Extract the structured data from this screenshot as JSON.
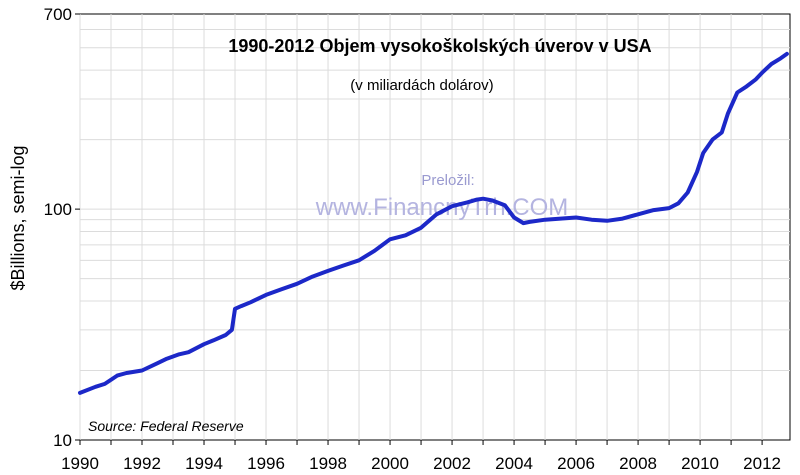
{
  "chart_data": {
    "type": "line",
    "title": "1990-2012 Objem vysokoškolských úverov v USA",
    "subtitle": "(v miliardách dolárov)",
    "ylabel": "$Billions, semi-log",
    "xlabel": "",
    "yscale": "log",
    "ylim": [
      10,
      700
    ],
    "xlim": [
      1990,
      2012.9
    ],
    "grid": true,
    "y_ticks": [
      10,
      100,
      700
    ],
    "y_tick_labels": [
      "10",
      "100",
      "700"
    ],
    "x_ticks": [
      1990,
      1992,
      1994,
      1996,
      1998,
      2000,
      2002,
      2004,
      2006,
      2008,
      2010,
      2012
    ],
    "x_tick_labels": [
      "1990",
      "1992",
      "1994",
      "1996",
      "1998",
      "2000",
      "2002",
      "2004",
      "2006",
      "2008",
      "2010",
      "2012"
    ],
    "annotations": {
      "source": "Source: Federal Reserve",
      "watermark_top": "Preložil:",
      "watermark_bottom": "www.FinancnyTrh.COM"
    },
    "line_color": "#1c28c8",
    "series": [
      {
        "x": [
          1990.0,
          1990.5,
          1990.8,
          1991.2,
          1991.5,
          1992.0,
          1992.5,
          1992.8,
          1993.2,
          1993.5,
          1994.0,
          1994.3,
          1994.7,
          1994.9,
          1995.0,
          1995.2,
          1995.5,
          1996.0,
          1996.5,
          1997.0,
          1997.5,
          1998.0,
          1998.5,
          1999.0,
          1999.5,
          2000.0,
          2000.5,
          2001.0,
          2001.5,
          2002.0,
          2002.5,
          2002.8,
          2003.0,
          2003.3,
          2003.7,
          2004.0,
          2004.3,
          2004.5,
          2005.0,
          2005.5,
          2006.0,
          2006.5,
          2007.0,
          2007.5,
          2008.0,
          2008.5,
          2009.0,
          2009.3,
          2009.6,
          2009.9,
          2010.1,
          2010.4,
          2010.7,
          2010.9,
          2011.2,
          2011.5,
          2011.8,
          2012.0,
          2012.3,
          2012.6,
          2012.8
        ],
        "y": [
          16,
          17,
          17.5,
          19,
          19.5,
          20,
          21.5,
          22.5,
          23.5,
          24,
          26,
          27,
          28.5,
          30,
          37,
          38,
          39.5,
          42.5,
          45,
          47.5,
          51,
          54,
          57,
          60,
          66,
          74,
          77,
          83,
          95,
          103,
          107,
          110,
          111,
          109,
          104,
          92,
          87,
          88,
          90,
          91,
          92,
          90,
          89,
          91,
          95,
          99,
          101,
          106,
          118,
          145,
          175,
          200,
          215,
          260,
          320,
          340,
          365,
          390,
          425,
          450,
          470
        ]
      }
    ]
  }
}
